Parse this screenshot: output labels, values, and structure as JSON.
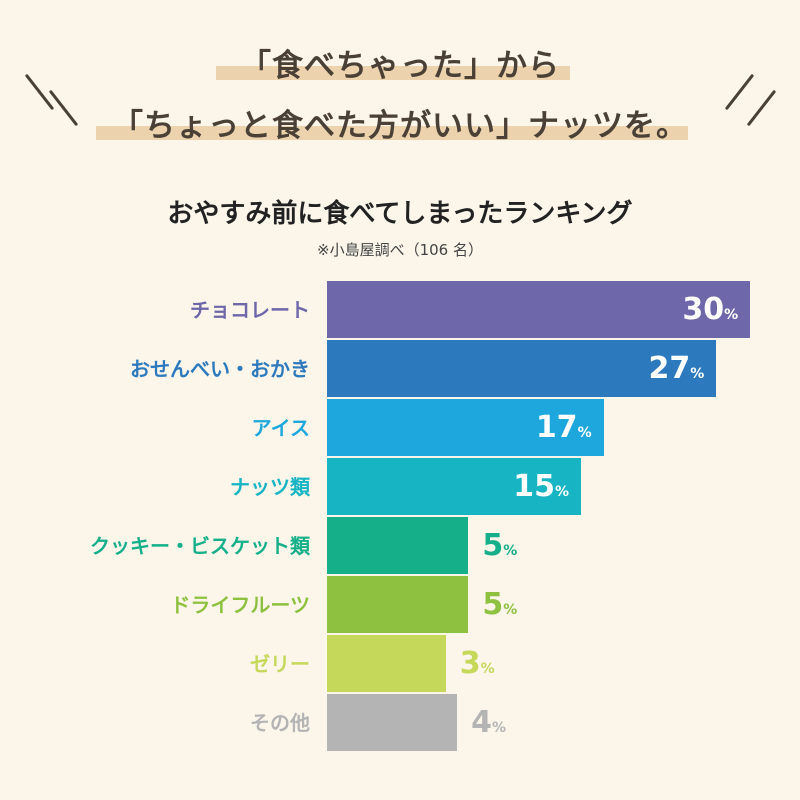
{
  "header": {
    "line1": "「食べちゃった」から",
    "line2": "「ちょっと食べた方がいい」ナッツを。"
  },
  "chart_data": {
    "type": "bar",
    "orientation": "horizontal",
    "title": "おやすみ前に食べてしまったランキング",
    "subtitle": "※小島屋調べ（106 名）",
    "categories": [
      "チョコレート",
      "おせんべい・おかき",
      "アイス",
      "ナッツ類",
      "クッキー・ビスケット類",
      "ドライフルーツ",
      "ゼリー",
      "その他"
    ],
    "values": [
      30,
      27,
      17,
      15,
      5,
      5,
      3,
      4
    ],
    "unit": "%",
    "colors": [
      "#6e67aa",
      "#2d79bd",
      "#1ea7dc",
      "#17b4c4",
      "#15b08a",
      "#8ec13f",
      "#c6d85a",
      "#b4b4b4"
    ],
    "grid": false
  },
  "colors": {
    "background": "#fbf5ea",
    "highlight": "#ecd3ad",
    "heading": "#4a4036"
  }
}
